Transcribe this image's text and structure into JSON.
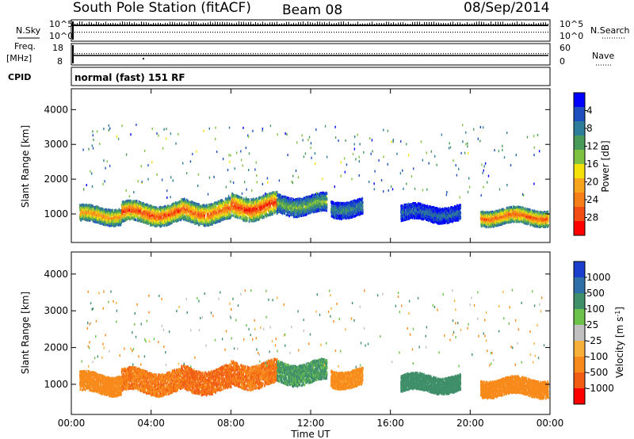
{
  "header": {
    "station": "South Pole Station (fitACF)",
    "beam": "Beam 08",
    "date": "08/Sep/2014"
  },
  "top_panels": {
    "nsky_label": "N.Sky",
    "nsearch_label": "N.Search",
    "nsky_ticks": [
      "10^5",
      "10^0"
    ],
    "nsearch_ticks": [
      "10^5",
      "10^0"
    ],
    "freq_label": "Freq.",
    "freq_unit": "[MHz]",
    "freq_ticks": [
      "18",
      "8"
    ],
    "nave_label": "Nave",
    "nave_ticks": [
      "60",
      "0"
    ],
    "cpid_label": "CPID",
    "cpid_text": "normal (fast) 151 RF"
  },
  "chart_data": [
    {
      "type": "heatmap",
      "name": "power",
      "ylabel": "Slant Range [km]",
      "xlabel": "",
      "xlim": [
        0,
        24
      ],
      "ylim": [
        180,
        4600
      ],
      "y_ticks": [
        "1000",
        "2000",
        "3000",
        "4000"
      ],
      "colorbar": {
        "label": "Power [dB]",
        "ticks": [
          "4",
          "8",
          "12",
          "16",
          "20",
          "24",
          "28"
        ],
        "colors": [
          "#0000ff",
          "#1f4fbf",
          "#2e7d9a",
          "#4a9a5a",
          "#7fc241",
          "#f5e10a",
          "#f7a51c",
          "#f77f1a",
          "#f24d12",
          "#ff0000"
        ]
      },
      "bands": [
        {
          "t_start": 0.4,
          "t_end": 2.5,
          "r_center": 1000,
          "r_half": 230,
          "value": 22
        },
        {
          "t_start": 2.5,
          "t_end": 5.5,
          "r_center": 1050,
          "r_half": 280,
          "value": 26
        },
        {
          "t_start": 5.5,
          "t_end": 8.0,
          "r_center": 1100,
          "r_half": 300,
          "value": 25
        },
        {
          "t_start": 8.0,
          "t_end": 10.3,
          "r_center": 1250,
          "r_half": 320,
          "value": 27
        },
        {
          "t_start": 10.3,
          "t_end": 12.8,
          "r_center": 1300,
          "r_half": 260,
          "value": 14
        },
        {
          "t_start": 13.0,
          "t_end": 14.6,
          "r_center": 1200,
          "r_half": 230,
          "value": 10
        },
        {
          "t_start": 16.5,
          "t_end": 19.5,
          "r_center": 1050,
          "r_half": 220,
          "value": 8
        },
        {
          "t_start": 20.5,
          "t_end": 23.9,
          "r_center": 950,
          "r_half": 220,
          "value": 25
        }
      ]
    },
    {
      "type": "heatmap",
      "name": "velocity",
      "ylabel": "Slant Range [km]",
      "xlabel": "Time UT",
      "xlim": [
        0,
        24
      ],
      "ylim": [
        180,
        4600
      ],
      "x_ticks": [
        "00:00",
        "04:00",
        "08:00",
        "12:00",
        "16:00",
        "20:00",
        "00:00"
      ],
      "y_ticks": [
        "1000",
        "2000",
        "3000",
        "4000"
      ],
      "colorbar": {
        "label": "Velocity [m s",
        "label_sup": "-1",
        "label_tail": "]",
        "ticks": [
          "1000",
          "500",
          "100",
          "25",
          "-25",
          "-100",
          "-500",
          "-1000"
        ],
        "colors": [
          "#1c3ecf",
          "#2f6fa8",
          "#3f8f6a",
          "#6cc24a",
          "#c0c0c0",
          "#f7b13a",
          "#f78a1a",
          "#f25d14",
          "#ff0000"
        ]
      },
      "bands": [
        {
          "t_start": 0.4,
          "t_end": 2.5,
          "r_center": 1050,
          "r_half": 260,
          "value": -300
        },
        {
          "t_start": 2.5,
          "t_end": 5.5,
          "r_center": 1100,
          "r_half": 300,
          "value": -400
        },
        {
          "t_start": 5.5,
          "t_end": 8.0,
          "r_center": 1150,
          "r_half": 320,
          "value": -600
        },
        {
          "t_start": 8.0,
          "t_end": 10.3,
          "r_center": 1300,
          "r_half": 320,
          "value": -450
        },
        {
          "t_start": 10.3,
          "t_end": 12.8,
          "r_center": 1350,
          "r_half": 280,
          "value": 150
        },
        {
          "t_start": 13.0,
          "t_end": 14.6,
          "r_center": 1200,
          "r_half": 230,
          "value": -200
        },
        {
          "t_start": 16.5,
          "t_end": 19.5,
          "r_center": 1050,
          "r_half": 220,
          "value": 300
        },
        {
          "t_start": 20.5,
          "t_end": 23.9,
          "r_center": 950,
          "r_half": 230,
          "value": -300
        }
      ]
    }
  ]
}
